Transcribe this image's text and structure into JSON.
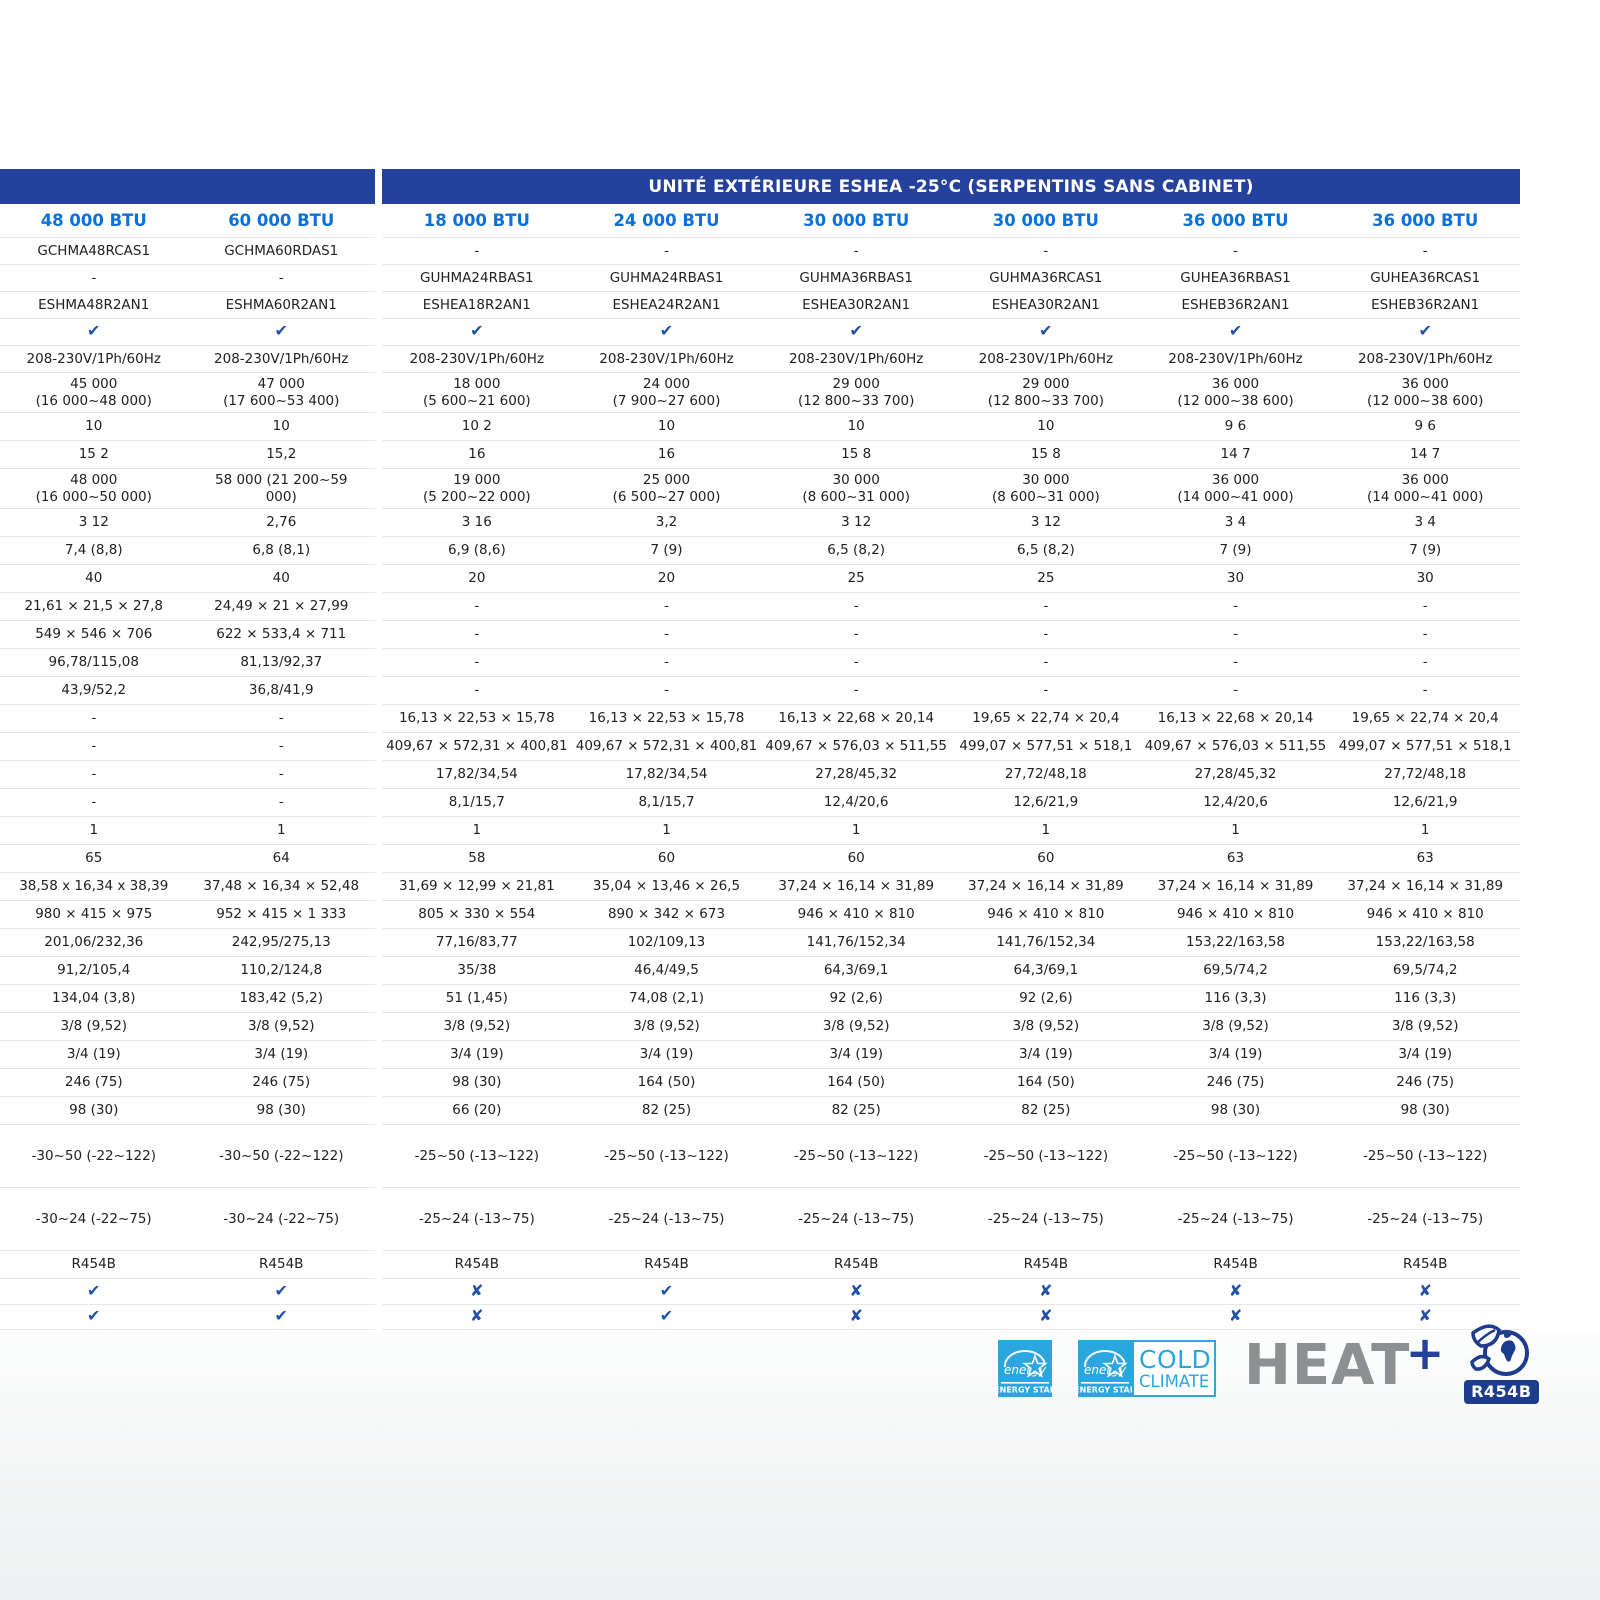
{
  "title": "UNITÉ EXTÉRIEURE ESHEA -25°C (SERPENTINS SANS CABINET)",
  "btu_headers": [
    "48 000 BTU",
    "60 000 BTU",
    "18 000 BTU",
    "24 000 BTU",
    "30 000 BTU",
    "30 000 BTU",
    "36 000 BTU",
    "36 000 BTU"
  ],
  "marks": {
    "check": "✔",
    "x": "✘"
  },
  "rows": [
    {
      "h": "s1",
      "cells": [
        "GCHMA48RCAS1",
        "GCHMA60RDAS1",
        "-",
        "-",
        "-",
        "-",
        "-",
        "-"
      ]
    },
    {
      "h": "s1",
      "cells": [
        "-",
        "-",
        "GUHMA24RBAS1",
        "GUHMA24RBAS1",
        "GUHMA36RBAS1",
        "GUHMA36RCAS1",
        "GUHEA36RBAS1",
        "GUHEA36RCAS1"
      ]
    },
    {
      "h": "s1",
      "cells": [
        "ESHMA48R2AN1",
        "ESHMA60R2AN1",
        "ESHEA18R2AN1",
        "ESHEA24R2AN1",
        "ESHEA30R2AN1",
        "ESHEA30R2AN1",
        "ESHEB36R2AN1",
        "ESHEB36R2AN1"
      ]
    },
    {
      "h": "s1",
      "cells": [
        "check",
        "check",
        "check",
        "check",
        "check",
        "check",
        "check",
        "check"
      ]
    },
    {
      "h": "s1",
      "cells": [
        "208-230V/1Ph/60Hz",
        "208-230V/1Ph/60Hz",
        "208-230V/1Ph/60Hz",
        "208-230V/1Ph/60Hz",
        "208-230V/1Ph/60Hz",
        "208-230V/1Ph/60Hz",
        "208-230V/1Ph/60Hz",
        "208-230V/1Ph/60Hz"
      ]
    },
    {
      "h": "d",
      "cells": [
        "45 000\n(16 000~48 000)",
        "47 000\n(17 600~53 400)",
        "18 000\n(5 600~21 600)",
        "24 000\n(7 900~27 600)",
        "29 000\n(12 800~33 700)",
        "29 000\n(12 800~33 700)",
        "36 000\n(12 000~38 600)",
        "36 000\n(12 000~38 600)"
      ]
    },
    {
      "h": "s",
      "cells": [
        "10",
        "10",
        "10 2",
        "10",
        "10",
        "10",
        "9 6",
        "9 6"
      ]
    },
    {
      "h": "s",
      "cells": [
        "15 2",
        "15,2",
        "16",
        "16",
        "15 8",
        "15 8",
        "14 7",
        "14 7"
      ]
    },
    {
      "h": "d",
      "cells": [
        "48 000\n(16 000~50 000)",
        "58 000 (21 200~59\n000)",
        "19 000\n(5 200~22 000)",
        "25 000\n(6 500~27 000)",
        "30 000\n(8 600~31 000)",
        "30 000\n(8 600~31 000)",
        "36 000\n(14 000~41 000)",
        "36 000\n(14 000~41 000)"
      ]
    },
    {
      "h": "s",
      "cells": [
        "3 12",
        "2,76",
        "3 16",
        "3,2",
        "3 12",
        "3 12",
        "3 4",
        "3 4"
      ]
    },
    {
      "h": "s",
      "cells": [
        "7,4 (8,8)",
        "6,8 (8,1)",
        "6,9 (8,6)",
        "7 (9)",
        "6,5 (8,2)",
        "6,5 (8,2)",
        "7 (9)",
        "7 (9)"
      ]
    },
    {
      "h": "s",
      "cells": [
        "40",
        "40",
        "20",
        "20",
        "25",
        "25",
        "30",
        "30"
      ]
    },
    {
      "h": "s",
      "cells": [
        "21,61 × 21,5 × 27,8",
        "24,49 × 21 × 27,99",
        "-",
        "-",
        "-",
        "-",
        "-",
        "-"
      ]
    },
    {
      "h": "s",
      "cells": [
        "549 × 546 × 706",
        "622 × 533,4 × 711",
        "-",
        "-",
        "-",
        "-",
        "-",
        "-"
      ]
    },
    {
      "h": "s",
      "cells": [
        "96,78/115,08",
        "81,13/92,37",
        "-",
        "-",
        "-",
        "-",
        "-",
        "-"
      ]
    },
    {
      "h": "s",
      "cells": [
        "43,9/52,2",
        "36,8/41,9",
        "-",
        "-",
        "-",
        "-",
        "-",
        "-"
      ]
    },
    {
      "h": "s",
      "cells": [
        "-",
        "-",
        "16,13 × 22,53 × 15,78",
        "16,13 × 22,53 × 15,78",
        "16,13 × 22,68 × 20,14",
        "19,65 × 22,74 × 20,4",
        "16,13 × 22,68 × 20,14",
        "19,65 × 22,74 × 20,4"
      ]
    },
    {
      "h": "s",
      "cells": [
        "-",
        "-",
        "409,67 × 572,31 × 400,81",
        "409,67 × 572,31 × 400,81",
        "409,67 × 576,03 × 511,55",
        "499,07 × 577,51 × 518,1",
        "409,67 × 576,03 × 511,55",
        "499,07 × 577,51 × 518,1"
      ]
    },
    {
      "h": "s",
      "cells": [
        "-",
        "-",
        "17,82/34,54",
        "17,82/34,54",
        "27,28/45,32",
        "27,72/48,18",
        "27,28/45,32",
        "27,72/48,18"
      ]
    },
    {
      "h": "s",
      "cells": [
        "-",
        "-",
        "8,1/15,7",
        "8,1/15,7",
        "12,4/20,6",
        "12,6/21,9",
        "12,4/20,6",
        "12,6/21,9"
      ]
    },
    {
      "h": "s",
      "cells": [
        "1",
        "1",
        "1",
        "1",
        "1",
        "1",
        "1",
        "1"
      ]
    },
    {
      "h": "s",
      "cells": [
        "65",
        "64",
        "58",
        "60",
        "60",
        "60",
        "63",
        "63"
      ]
    },
    {
      "h": "s",
      "cells": [
        "38,58 x 16,34 x 38,39",
        "37,48 × 16,34 × 52,48",
        "31,69 × 12,99 × 21,81",
        "35,04 × 13,46 × 26,5",
        "37,24 × 16,14 × 31,89",
        "37,24 × 16,14 × 31,89",
        "37,24 × 16,14 × 31,89",
        "37,24 × 16,14 × 31,89"
      ]
    },
    {
      "h": "s",
      "cells": [
        "980 × 415 × 975",
        "952 × 415 × 1 333",
        "805 × 330 × 554",
        "890 × 342 × 673",
        "946 × 410 × 810",
        "946 × 410 × 810",
        "946 × 410 × 810",
        "946 × 410 × 810"
      ]
    },
    {
      "h": "s",
      "cells": [
        "201,06/232,36",
        "242,95/275,13",
        "77,16/83,77",
        "102/109,13",
        "141,76/152,34",
        "141,76/152,34",
        "153,22/163,58",
        "153,22/163,58"
      ]
    },
    {
      "h": "s",
      "cells": [
        "91,2/105,4",
        "110,2/124,8",
        "35/38",
        "46,4/49,5",
        "64,3/69,1",
        "64,3/69,1",
        "69,5/74,2",
        "69,5/74,2"
      ]
    },
    {
      "h": "s",
      "cells": [
        "134,04 (3,8)",
        "183,42 (5,2)",
        "51 (1,45)",
        "74,08 (2,1)",
        "92 (2,6)",
        "92 (2,6)",
        "116 (3,3)",
        "116 (3,3)"
      ]
    },
    {
      "h": "s",
      "cells": [
        "3/8 (9,52)",
        "3/8 (9,52)",
        "3/8 (9,52)",
        "3/8 (9,52)",
        "3/8 (9,52)",
        "3/8 (9,52)",
        "3/8 (9,52)",
        "3/8 (9,52)"
      ]
    },
    {
      "h": "s",
      "cells": [
        "3/4 (19)",
        "3/4 (19)",
        "3/4 (19)",
        "3/4 (19)",
        "3/4 (19)",
        "3/4 (19)",
        "3/4 (19)",
        "3/4 (19)"
      ]
    },
    {
      "h": "s",
      "cells": [
        "246 (75)",
        "246 (75)",
        "98 (30)",
        "164 (50)",
        "164 (50)",
        "164 (50)",
        "246 (75)",
        "246 (75)"
      ]
    },
    {
      "h": "s",
      "cells": [
        "98 (30)",
        "98 (30)",
        "66 (20)",
        "82 (25)",
        "82 (25)",
        "82 (25)",
        "98 (30)",
        "98 (30)"
      ]
    },
    {
      "h": "t",
      "cells": [
        "-30~50 (-22~122)",
        "-30~50 (-22~122)",
        "-25~50 (-13~122)",
        "-25~50 (-13~122)",
        "-25~50 (-13~122)",
        "-25~50 (-13~122)",
        "-25~50 (-13~122)",
        "-25~50 (-13~122)"
      ]
    },
    {
      "h": "t",
      "cells": [
        "-30~24 (-22~75)",
        "-30~24 (-22~75)",
        "-25~24 (-13~75)",
        "-25~24 (-13~75)",
        "-25~24 (-13~75)",
        "-25~24 (-13~75)",
        "-25~24 (-13~75)",
        "-25~24 (-13~75)"
      ]
    },
    {
      "h": "s",
      "cells": [
        "R454B",
        "R454B",
        "R454B",
        "R454B",
        "R454B",
        "R454B",
        "R454B",
        "R454B"
      ]
    },
    {
      "h": "m",
      "cells": [
        "check",
        "check",
        "x",
        "check",
        "x",
        "x",
        "x",
        "x"
      ]
    },
    {
      "h": "m",
      "cells": [
        "check",
        "check",
        "x",
        "check",
        "x",
        "x",
        "x",
        "x"
      ]
    }
  ],
  "logos": {
    "energy_star_script": "energy",
    "energy_star_caption": "ENERGY STAR",
    "cold_climate_line1": "COLD",
    "cold_climate_line2": "CLIMATE",
    "heat_text": "HEAT",
    "heat_plus": "+",
    "r454b_label": "R454B"
  },
  "colors": {
    "navy": "#24419B",
    "btu_blue": "#0B70D8",
    "mark_blue": "#2152A7",
    "text": "#212121",
    "separator": "#E7E8E9",
    "energystar_blue": "#2CA6DF",
    "heat_gray": "#8E8F90",
    "logo_navy": "#1E3C8C"
  }
}
